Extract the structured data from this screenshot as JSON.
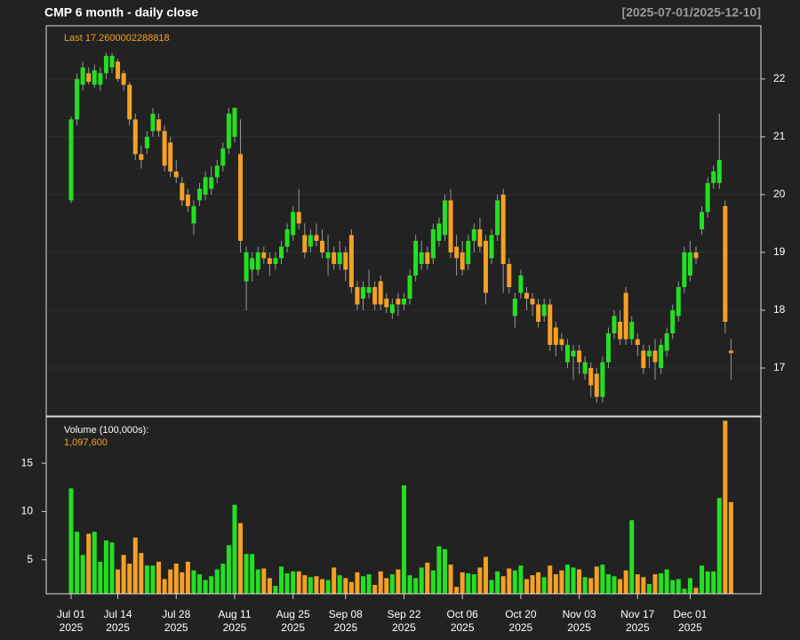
{
  "chart_data": [
    {
      "type": "candlestick",
      "title": "CMP  6 month - daily close",
      "date_range": "[2025-07-01/2025-12-10]",
      "annotation": "Last 17.2600002288818",
      "categories": [
        [
          "Jul 01",
          "2025"
        ],
        null,
        null,
        null,
        null,
        null,
        null,
        null,
        [
          "Jul 14",
          "2025"
        ],
        null,
        null,
        null,
        null,
        null,
        null,
        null,
        null,
        null,
        [
          "Jul 28",
          "2025"
        ],
        null,
        null,
        null,
        null,
        null,
        null,
        null,
        null,
        null,
        [
          "Aug 11",
          "2025"
        ],
        null,
        null,
        null,
        null,
        null,
        null,
        null,
        null,
        null,
        [
          "Aug 25",
          "2025"
        ],
        null,
        null,
        null,
        null,
        null,
        null,
        null,
        null,
        [
          "Sep 08",
          "2025"
        ],
        null,
        null,
        null,
        null,
        null,
        null,
        null,
        null,
        null,
        [
          "Sep 22",
          "2025"
        ],
        null,
        null,
        null,
        null,
        null,
        null,
        null,
        null,
        null,
        [
          "Oct 06",
          "2025"
        ],
        null,
        null,
        null,
        null,
        null,
        null,
        null,
        null,
        null,
        [
          "Oct 20",
          "2025"
        ],
        null,
        null,
        null,
        null,
        null,
        null,
        null,
        null,
        null,
        [
          "Nov 03",
          "2025"
        ],
        null,
        null,
        null,
        null,
        null,
        null,
        null,
        null,
        null,
        [
          "Nov 17",
          "2025"
        ],
        null,
        null,
        null,
        null,
        null,
        null,
        null,
        null,
        [
          "Dec 01",
          "2025"
        ],
        null,
        null,
        null,
        null,
        null,
        null,
        null
      ],
      "open": [
        19.9,
        21.3,
        21.9,
        22.1,
        21.9,
        21.9,
        22.1,
        22.2,
        22.3,
        22.1,
        21.9,
        21.3,
        20.7,
        20.8,
        21.1,
        21.3,
        21.1,
        20.9,
        20.4,
        20.2,
        20.0,
        19.5,
        19.9,
        20.0,
        20.1,
        20.3,
        20.5,
        20.8,
        21.0,
        20.7,
        18.5,
        18.7,
        18.7,
        19.0,
        18.9,
        18.8,
        18.9,
        19.1,
        19.3,
        19.7,
        19.3,
        19.1,
        19.3,
        19.2,
        18.9,
        19.0,
        18.8,
        19.0,
        19.3,
        18.4,
        18.2,
        18.3,
        18.4,
        18.5,
        18.2,
        17.95,
        18.2,
        18.1,
        18.2,
        18.6,
        18.8,
        19.0,
        18.9,
        19.2,
        19.3,
        19.9,
        19.1,
        19.0,
        18.8,
        19.2,
        19.4,
        19.2,
        18.9,
        19.3,
        20.0,
        18.8,
        17.9,
        18.3,
        18.3,
        18.2,
        18.1,
        17.9,
        18.1,
        17.7,
        17.5,
        17.1,
        17.2,
        17.3,
        16.9,
        17.0,
        16.9,
        16.5,
        17.1,
        17.6,
        17.8,
        18.3,
        17.5,
        17.5,
        17.3,
        17.2,
        17.3,
        17.0,
        17.3,
        17.6,
        17.9,
        18.4,
        18.6,
        19.0,
        19.4,
        19.7,
        20.2,
        20.2,
        19.8,
        17.3
      ],
      "high": [
        21.35,
        22.1,
        22.3,
        22.2,
        22.25,
        22.2,
        22.45,
        22.45,
        22.35,
        22.15,
        21.95,
        21.4,
        20.85,
        21.1,
        21.5,
        21.4,
        21.2,
        21.0,
        20.6,
        20.3,
        20.1,
        19.9,
        20.2,
        20.4,
        20.5,
        20.6,
        20.9,
        21.5,
        21.5,
        21.3,
        19.1,
        19.0,
        19.1,
        19.1,
        19.0,
        19.0,
        19.2,
        19.5,
        19.8,
        20.1,
        19.5,
        19.4,
        19.5,
        19.4,
        19.3,
        19.1,
        19.2,
        19.1,
        19.4,
        18.5,
        18.5,
        18.7,
        18.5,
        18.6,
        18.3,
        18.2,
        18.3,
        18.3,
        18.7,
        19.3,
        19.2,
        19.1,
        19.5,
        19.6,
        20.0,
        20.1,
        19.3,
        19.2,
        19.3,
        19.5,
        19.6,
        19.3,
        19.4,
        20.0,
        20.1,
        18.9,
        18.3,
        18.7,
        18.4,
        18.3,
        18.2,
        18.2,
        18.2,
        17.8,
        17.6,
        17.5,
        17.4,
        17.4,
        17.2,
        17.1,
        17.0,
        17.2,
        17.7,
        18.0,
        18.0,
        18.4,
        17.9,
        17.6,
        17.4,
        17.4,
        17.5,
        17.5,
        17.7,
        18.1,
        18.5,
        19.1,
        19.2,
        19.1,
        19.8,
        20.3,
        20.5,
        21.4,
        19.9,
        17.5
      ],
      "low": [
        19.85,
        21.2,
        21.8,
        21.9,
        21.85,
        21.8,
        22.0,
        22.1,
        21.95,
        21.8,
        21.2,
        20.6,
        20.45,
        20.7,
        21.0,
        21.0,
        20.4,
        20.3,
        20.2,
        19.8,
        19.7,
        19.3,
        19.8,
        19.9,
        20.0,
        20.2,
        20.4,
        20.7,
        20.9,
        19.0,
        18.0,
        18.5,
        18.6,
        18.8,
        18.6,
        18.7,
        18.8,
        19.0,
        19.2,
        19.4,
        18.9,
        19.0,
        19.1,
        18.9,
        18.6,
        18.7,
        18.7,
        18.5,
        18.3,
        18.0,
        18.0,
        18.2,
        18.0,
        18.0,
        17.95,
        17.85,
        17.9,
        18.0,
        18.1,
        18.5,
        18.7,
        18.7,
        18.8,
        19.1,
        19.2,
        18.9,
        18.6,
        18.6,
        18.7,
        19.0,
        19.0,
        18.1,
        18.8,
        19.2,
        18.3,
        18.3,
        17.7,
        18.2,
        18.0,
        17.9,
        17.7,
        17.8,
        17.3,
        17.2,
        17.3,
        17.0,
        16.8,
        16.9,
        16.8,
        16.5,
        16.4,
        16.4,
        17.0,
        17.5,
        17.4,
        17.4,
        17.4,
        17.2,
        16.9,
        17.0,
        16.8,
        16.9,
        17.2,
        17.5,
        17.8,
        18.3,
        18.5,
        18.8,
        19.3,
        19.6,
        20.1,
        20.1,
        17.6,
        16.8
      ],
      "close": [
        21.3,
        22.0,
        22.2,
        21.95,
        22.15,
        22.1,
        22.4,
        22.4,
        22.0,
        21.9,
        21.3,
        20.7,
        20.6,
        21.0,
        21.4,
        21.1,
        20.5,
        20.4,
        20.3,
        19.9,
        19.8,
        19.8,
        20.1,
        20.3,
        20.3,
        20.5,
        20.8,
        21.4,
        21.5,
        19.2,
        19.0,
        18.9,
        19.0,
        18.9,
        18.8,
        18.9,
        19.1,
        19.4,
        19.7,
        19.5,
        19.0,
        19.3,
        19.2,
        19.0,
        19.0,
        18.8,
        19.0,
        18.7,
        18.4,
        18.1,
        18.4,
        18.4,
        18.1,
        18.1,
        18.05,
        18.1,
        18.1,
        18.2,
        18.6,
        19.2,
        19.0,
        18.8,
        19.4,
        19.5,
        19.9,
        19.0,
        18.9,
        18.7,
        19.2,
        19.4,
        19.1,
        18.3,
        19.3,
        19.9,
        18.8,
        18.4,
        18.2,
        18.6,
        18.2,
        18.1,
        17.8,
        18.1,
        17.4,
        17.4,
        17.4,
        17.4,
        17.3,
        17.1,
        17.1,
        16.7,
        16.5,
        17.1,
        17.6,
        17.9,
        17.5,
        17.5,
        17.8,
        17.4,
        17.0,
        17.3,
        17.1,
        17.4,
        17.6,
        18.0,
        18.4,
        19.0,
        19.0,
        18.9,
        19.7,
        20.2,
        20.4,
        20.6,
        17.8,
        17.26
      ],
      "ylim": [
        16.17,
        22.92
      ],
      "yticks": [
        17,
        18,
        19,
        20,
        21,
        22
      ],
      "grid": true,
      "up_color": "#22e022",
      "down_color": "#f5a025",
      "wick_color": "#999999"
    },
    {
      "type": "volume",
      "title": "Volume (100,000s):",
      "annotation": "1,097,600",
      "values": [
        12.4,
        7.9,
        5.5,
        7.7,
        7.9,
        4.8,
        7.0,
        6.8,
        4.0,
        5.5,
        4.6,
        7.3,
        5.7,
        4.4,
        4.4,
        4.8,
        3.0,
        4.0,
        4.6,
        3.7,
        4.8,
        3.9,
        3.5,
        2.9,
        3.3,
        4.0,
        4.6,
        6.5,
        10.7,
        8.8,
        5.6,
        5.6,
        4.0,
        4.1,
        3.1,
        2.3,
        4.3,
        3.6,
        3.8,
        3.8,
        3.4,
        3.2,
        3.3,
        3.0,
        2.9,
        4.2,
        3.4,
        3.1,
        2.7,
        3.7,
        3.3,
        3.5,
        2.4,
        3.8,
        3.1,
        3.5,
        4.0,
        12.7,
        3.4,
        3.1,
        4.2,
        4.7,
        3.9,
        6.4,
        6.1,
        4.5,
        2.2,
        3.7,
        3.6,
        3.5,
        4.2,
        5.3,
        2.9,
        3.8,
        3.3,
        4.1,
        3.9,
        4.4,
        3.0,
        3.4,
        3.7,
        3.2,
        4.4,
        3.5,
        3.9,
        4.5,
        4.2,
        4.0,
        3.2,
        3.1,
        4.3,
        4.5,
        3.5,
        3.3,
        3.0,
        3.9,
        9.1,
        3.5,
        3.2,
        2.5,
        3.5,
        3.6,
        4.0,
        2.9,
        3.0,
        2.0,
        3.1,
        2.1,
        4.4,
        3.8,
        3.8,
        11.4,
        19.4,
        10.976
      ],
      "ylim": [
        1.48,
        19.8
      ],
      "yticks": [
        5,
        10,
        15
      ],
      "up_color": "#22e022",
      "down_color": "#f5a025"
    }
  ]
}
